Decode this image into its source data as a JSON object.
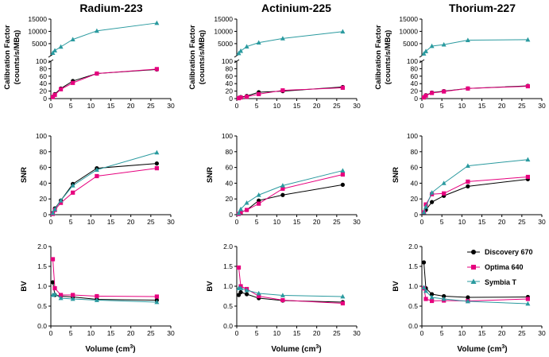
{
  "figure": {
    "titles": [
      "Radium-223",
      "Actinium-225",
      "Thorium-227"
    ],
    "ylabels": {
      "cf": [
        "Calibration Factor",
        "(counts/s/MBq)"
      ],
      "snr": "SNR",
      "bv": "BV"
    },
    "xlabel": {
      "main": "Volume (cm",
      "sup": "3",
      "close": ")"
    },
    "legend": [
      "Discovery 670",
      "Optima 640",
      "Symbia T"
    ],
    "colors": {
      "Discovery 670": "#000000",
      "Optima 640": "#e6007e",
      "Symbia T": "#2a9a9f"
    }
  },
  "chart_data": [
    {
      "type": "line",
      "isotope": "Radium-223",
      "metric": "Calibration Factor",
      "title": "Radium-223",
      "ylabel": "Calibration Factor (counts/s/MBq)",
      "xlabel": "",
      "xlim": [
        0,
        30
      ],
      "xticks": [
        0,
        5,
        10,
        15,
        20,
        25,
        30
      ],
      "ylim_lower": [
        0,
        100
      ],
      "ylim_upper": [
        100,
        15000
      ],
      "yticks_lower": [
        0,
        20,
        40,
        60,
        80,
        100
      ],
      "yticks_upper": [
        5000,
        10000,
        15000
      ],
      "series": [
        {
          "name": "Discovery 670",
          "x": [
            0.5,
            1,
            2.5,
            5.5,
            11.5,
            26.5
          ],
          "y": [
            5,
            12,
            27,
            47,
            67,
            78
          ]
        },
        {
          "name": "Optima 640",
          "x": [
            0.5,
            1,
            2.5,
            5.5,
            11.5,
            26.5
          ],
          "y": [
            4,
            10,
            25,
            42,
            67,
            79
          ]
        },
        {
          "name": "Symbia T",
          "x": [
            0.5,
            1,
            2.5,
            5.5,
            11.5,
            26.5
          ],
          "y": [
            1200,
            2200,
            3700,
            6700,
            10200,
            13400
          ]
        }
      ]
    },
    {
      "type": "line",
      "isotope": "Actinium-225",
      "metric": "Calibration Factor",
      "title": "Actinium-225",
      "ylabel": "Calibration Factor (counts/s/MBq)",
      "xlabel": "",
      "xlim": [
        0,
        30
      ],
      "xticks": [
        0,
        5,
        10,
        15,
        20,
        25,
        30
      ],
      "ylim_lower": [
        0,
        100
      ],
      "ylim_upper": [
        100,
        15000
      ],
      "yticks_lower": [
        0,
        20,
        40,
        60,
        80,
        100
      ],
      "yticks_upper": [
        5000,
        10000,
        15000
      ],
      "series": [
        {
          "name": "Discovery 670",
          "x": [
            0.5,
            1,
            2.5,
            5.5,
            11.5,
            26.5
          ],
          "y": [
            2,
            4,
            7,
            17,
            20,
            31
          ]
        },
        {
          "name": "Optima 640",
          "x": [
            0.5,
            1,
            2.5,
            5.5,
            11.5,
            26.5
          ],
          "y": [
            1,
            3,
            5,
            12,
            22,
            29
          ]
        },
        {
          "name": "Symbia T",
          "x": [
            0.5,
            1,
            2.5,
            5.5,
            11.5,
            26.5
          ],
          "y": [
            1100,
            2000,
            3800,
            5400,
            7100,
            9900
          ]
        }
      ]
    },
    {
      "type": "line",
      "isotope": "Thorium-227",
      "metric": "Calibration Factor",
      "title": "Thorium-227",
      "ylabel": "Calibration Factor (counts/s/MBq)",
      "xlabel": "",
      "xlim": [
        0,
        30
      ],
      "xticks": [
        0,
        5,
        10,
        15,
        20,
        25,
        30
      ],
      "ylim_lower": [
        0,
        100
      ],
      "ylim_upper": [
        100,
        15000
      ],
      "yticks_lower": [
        0,
        20,
        40,
        60,
        80,
        100
      ],
      "yticks_upper": [
        5000,
        10000,
        15000
      ],
      "series": [
        {
          "name": "Discovery 670",
          "x": [
            0.5,
            1,
            2.5,
            5.5,
            11.5,
            26.5
          ],
          "y": [
            4,
            9,
            16,
            20,
            27,
            34
          ]
        },
        {
          "name": "Optima 640",
          "x": [
            0.5,
            1,
            2.5,
            5.5,
            11.5,
            26.5
          ],
          "y": [
            3,
            8,
            15,
            19,
            27,
            33
          ]
        },
        {
          "name": "Symbia T",
          "x": [
            0.5,
            1,
            2.5,
            5.5,
            11.5,
            26.5
          ],
          "y": [
            900,
            1900,
            4000,
            4600,
            6400,
            6600
          ]
        }
      ]
    },
    {
      "type": "line",
      "isotope": "Radium-223",
      "metric": "SNR",
      "title": "",
      "ylabel": "SNR",
      "xlabel": "",
      "xlim": [
        0,
        30
      ],
      "ylim": [
        0,
        100
      ],
      "xticks": [
        0,
        5,
        10,
        15,
        20,
        25,
        30
      ],
      "yticks": [
        0,
        20,
        40,
        60,
        80,
        100
      ],
      "series": [
        {
          "name": "Discovery 670",
          "x": [
            0.5,
            1,
            2.5,
            5.5,
            11.5,
            26.5
          ],
          "y": [
            2,
            8,
            18,
            39,
            59,
            65
          ]
        },
        {
          "name": "Optima 640",
          "x": [
            0.5,
            1,
            2.5,
            5.5,
            11.5,
            26.5
          ],
          "y": [
            1,
            6,
            15,
            28,
            49,
            59
          ]
        },
        {
          "name": "Symbia T",
          "x": [
            0.5,
            1,
            2.5,
            5.5,
            11.5,
            26.5
          ],
          "y": [
            2,
            7,
            18,
            37,
            57,
            79
          ]
        }
      ]
    },
    {
      "type": "line",
      "isotope": "Actinium-225",
      "metric": "SNR",
      "title": "",
      "ylabel": "SNR",
      "xlabel": "",
      "xlim": [
        0,
        30
      ],
      "ylim": [
        0,
        100
      ],
      "xticks": [
        0,
        5,
        10,
        15,
        20,
        25,
        30
      ],
      "yticks": [
        0,
        20,
        40,
        60,
        80,
        100
      ],
      "series": [
        {
          "name": "Discovery 670",
          "x": [
            0.5,
            1,
            2.5,
            5.5,
            11.5,
            26.5
          ],
          "y": [
            1,
            3,
            6,
            18,
            25,
            38
          ]
        },
        {
          "name": "Optima 640",
          "x": [
            0.5,
            1,
            2.5,
            5.5,
            11.5,
            26.5
          ],
          "y": [
            1,
            3,
            6,
            14,
            33,
            51
          ]
        },
        {
          "name": "Symbia T",
          "x": [
            0.5,
            1,
            2.5,
            5.5,
            11.5,
            26.5
          ],
          "y": [
            2,
            7,
            15,
            25,
            37,
            56
          ]
        }
      ]
    },
    {
      "type": "line",
      "isotope": "Thorium-227",
      "metric": "SNR",
      "title": "",
      "ylabel": "SNR",
      "xlabel": "",
      "xlim": [
        0,
        30
      ],
      "ylim": [
        0,
        100
      ],
      "xticks": [
        0,
        5,
        10,
        15,
        20,
        25,
        30
      ],
      "yticks": [
        0,
        20,
        40,
        60,
        80,
        100
      ],
      "series": [
        {
          "name": "Discovery 670",
          "x": [
            0.5,
            1,
            2.5,
            5.5,
            11.5,
            26.5
          ],
          "y": [
            2,
            6,
            16,
            24,
            36,
            45
          ]
        },
        {
          "name": "Optima 640",
          "x": [
            0.5,
            1,
            2.5,
            5.5,
            11.5,
            26.5
          ],
          "y": [
            3,
            13,
            26,
            27,
            42,
            48
          ]
        },
        {
          "name": "Symbia T",
          "x": [
            0.5,
            1,
            2.5,
            5.5,
            11.5,
            26.5
          ],
          "y": [
            3,
            10,
            28,
            40,
            62,
            70
          ]
        }
      ]
    },
    {
      "type": "line",
      "isotope": "Radium-223",
      "metric": "BV",
      "title": "",
      "ylabel": "BV",
      "xlabel": "Volume (cm3)",
      "xlim": [
        0,
        30
      ],
      "ylim": [
        0,
        2
      ],
      "xticks": [
        0,
        5,
        10,
        15,
        20,
        25,
        30
      ],
      "yticks": [
        0.0,
        0.5,
        1.0,
        1.5,
        2.0
      ],
      "series": [
        {
          "name": "Discovery 670",
          "x": [
            0.5,
            1,
            2.5,
            5.5,
            11.5,
            26.5
          ],
          "y": [
            1.1,
            0.78,
            0.75,
            0.73,
            0.67,
            0.65
          ]
        },
        {
          "name": "Optima 640",
          "x": [
            0.5,
            1,
            2.5,
            5.5,
            11.5,
            26.5
          ],
          "y": [
            1.68,
            0.95,
            0.78,
            0.78,
            0.75,
            0.74
          ]
        },
        {
          "name": "Symbia T",
          "x": [
            0.5,
            1,
            2.5,
            5.5,
            11.5,
            26.5
          ],
          "y": [
            0.78,
            0.8,
            0.7,
            0.68,
            0.65,
            0.6
          ]
        }
      ]
    },
    {
      "type": "line",
      "isotope": "Actinium-225",
      "metric": "BV",
      "title": "",
      "ylabel": "BV",
      "xlabel": "Volume (cm3)",
      "xlim": [
        0,
        30
      ],
      "ylim": [
        0,
        2
      ],
      "xticks": [
        0,
        5,
        10,
        15,
        20,
        25,
        30
      ],
      "yticks": [
        0.0,
        0.5,
        1.0,
        1.5,
        2.0
      ],
      "series": [
        {
          "name": "Discovery 670",
          "x": [
            0.5,
            1,
            2.5,
            5.5,
            11.5,
            26.5
          ],
          "y": [
            0.78,
            0.85,
            0.8,
            0.7,
            0.64,
            0.6
          ]
        },
        {
          "name": "Optima 640",
          "x": [
            0.5,
            1,
            2.5,
            5.5,
            11.5,
            26.5
          ],
          "y": [
            1.47,
            1.0,
            0.93,
            0.75,
            0.65,
            0.57
          ]
        },
        {
          "name": "Symbia T",
          "x": [
            0.5,
            1,
            2.5,
            5.5,
            11.5,
            26.5
          ],
          "y": [
            0.95,
            0.95,
            0.9,
            0.82,
            0.77,
            0.74
          ]
        }
      ]
    },
    {
      "type": "line",
      "isotope": "Thorium-227",
      "metric": "BV",
      "title": "",
      "ylabel": "BV",
      "xlabel": "Volume (cm3)",
      "xlim": [
        0,
        30
      ],
      "ylim": [
        0,
        2
      ],
      "xticks": [
        0,
        5,
        10,
        15,
        20,
        25,
        30
      ],
      "yticks": [
        0.0,
        0.5,
        1.0,
        1.5,
        2.0
      ],
      "legend": [
        "Discovery 670",
        "Optima 640",
        "Symbia T"
      ],
      "series": [
        {
          "name": "Discovery 670",
          "x": [
            0.5,
            1,
            2.5,
            5.5,
            11.5,
            26.5
          ],
          "y": [
            1.6,
            0.95,
            0.8,
            0.75,
            0.72,
            0.73
          ]
        },
        {
          "name": "Optima 640",
          "x": [
            0.5,
            1,
            2.5,
            5.5,
            11.5,
            26.5
          ],
          "y": [
            0.95,
            0.68,
            0.63,
            0.64,
            0.63,
            0.68
          ]
        },
        {
          "name": "Symbia T",
          "x": [
            0.5,
            1,
            2.5,
            5.5,
            11.5,
            26.5
          ],
          "y": [
            0.97,
            0.88,
            0.72,
            0.68,
            0.62,
            0.56
          ]
        }
      ]
    }
  ]
}
